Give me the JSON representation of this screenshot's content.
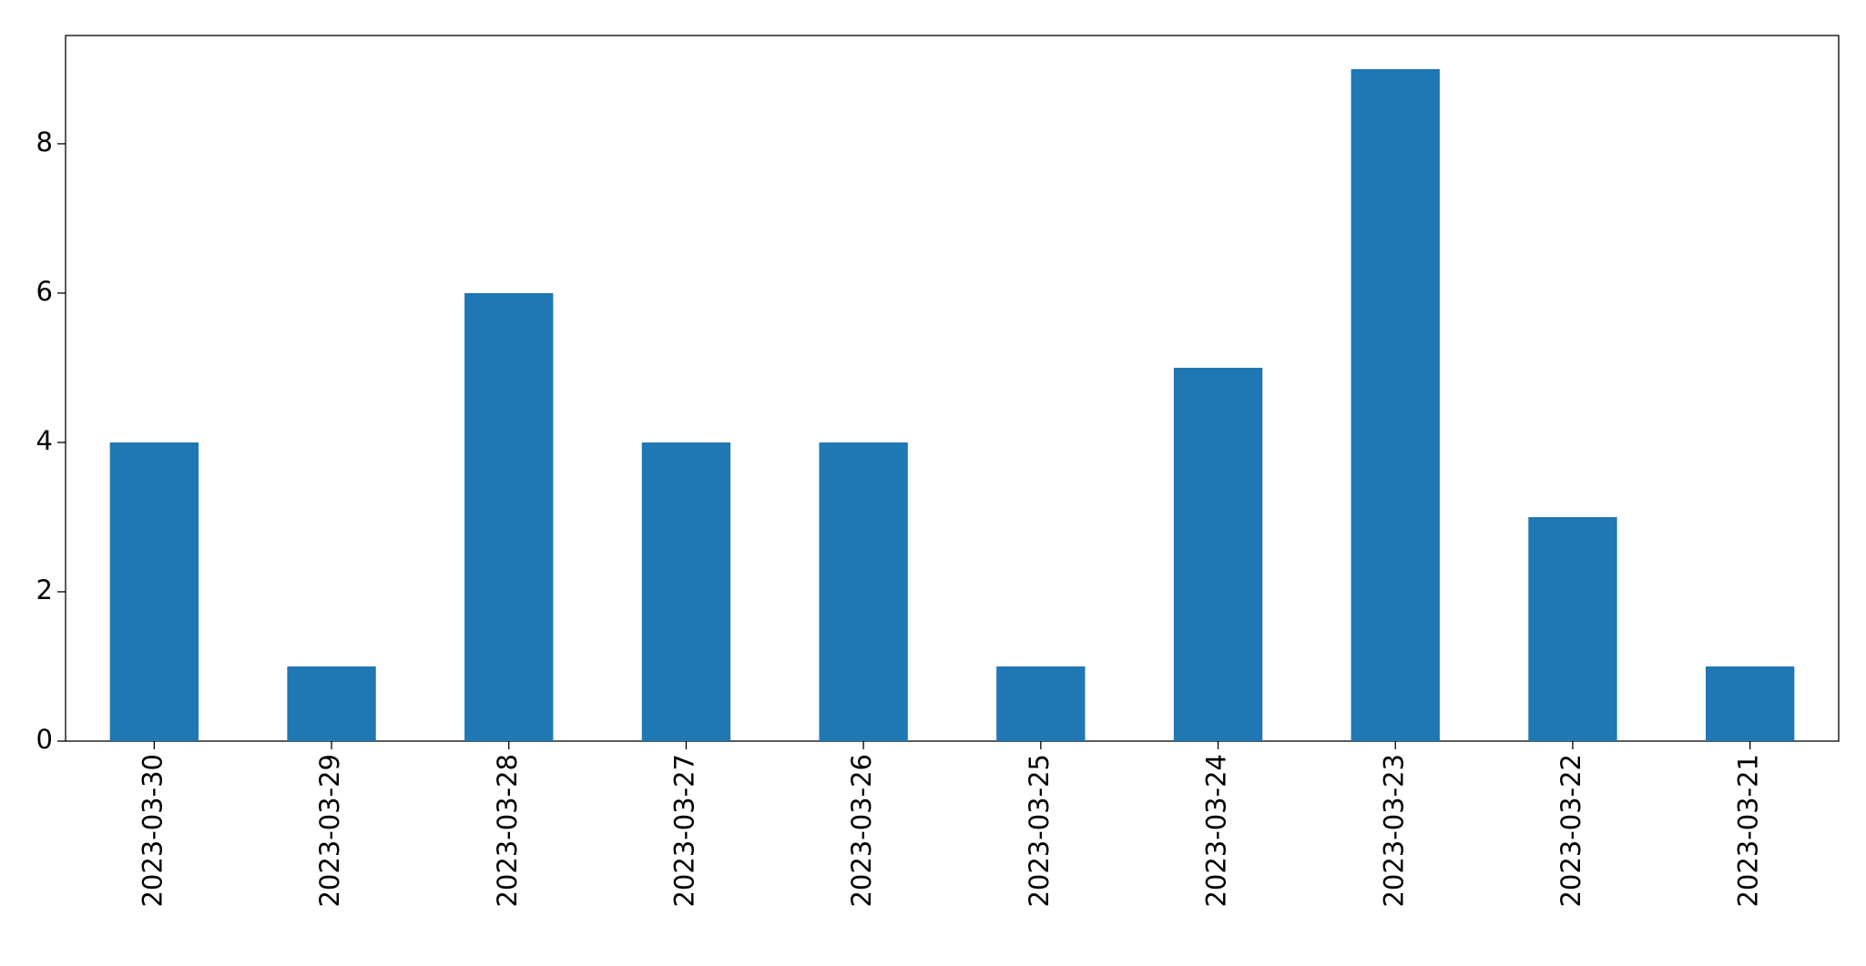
{
  "chart_data": {
    "type": "bar",
    "categories": [
      "2023-03-30",
      "2023-03-29",
      "2023-03-28",
      "2023-03-27",
      "2023-03-26",
      "2023-03-25",
      "2023-03-24",
      "2023-03-23",
      "2023-03-22",
      "2023-03-21"
    ],
    "values": [
      4,
      1,
      6,
      4,
      4,
      1,
      5,
      9,
      3,
      1
    ],
    "color": "#1f77b4",
    "ylim": [
      0,
      9.45
    ],
    "yticks": [
      0,
      2,
      4,
      6,
      8
    ],
    "grid": false
  }
}
